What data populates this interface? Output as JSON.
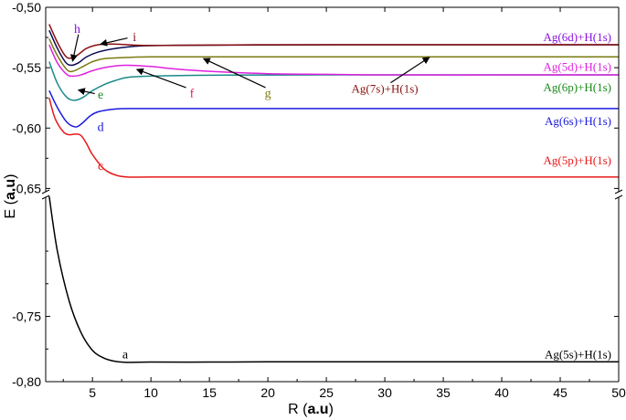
{
  "chart_data": {
    "type": "line",
    "xlabel_prefix": "R (",
    "xlabel_unit": "a.u",
    "xlabel_suffix": ")",
    "ylabel_prefix": "E (",
    "ylabel_unit": "a.u",
    "ylabel_suffix": ")",
    "x_range": [
      1,
      50
    ],
    "x_ticks": [
      5,
      10,
      15,
      20,
      25,
      30,
      35,
      40,
      45,
      50
    ],
    "y_ranges": {
      "upper": [
        -0.655,
        -0.5
      ],
      "lower": [
        -0.8,
        -0.658
      ]
    },
    "y_axis_break": true,
    "y_ticks_upper": [
      {
        "value": -0.5,
        "label": "-0,50"
      },
      {
        "value": -0.55,
        "label": "-0,55"
      },
      {
        "value": -0.6,
        "label": "-0,60"
      },
      {
        "value": -0.65,
        "label": "-0,65"
      }
    ],
    "y_ticks_lower": [
      {
        "value": -0.75,
        "label": "-0,75"
      },
      {
        "value": -0.8,
        "label": "-0,80"
      }
    ],
    "grid": false,
    "series": [
      {
        "id": "a",
        "name": "Ag(5s)+H(1s)",
        "color": "#000000",
        "segment": "lower",
        "points": [
          [
            1.3,
            -0.658
          ],
          [
            2,
            -0.7
          ],
          [
            3,
            -0.738
          ],
          [
            4,
            -0.762
          ],
          [
            5,
            -0.776
          ],
          [
            6,
            -0.782
          ],
          [
            7,
            -0.7845
          ],
          [
            8,
            -0.7852
          ],
          [
            10,
            -0.785
          ],
          [
            15,
            -0.785
          ],
          [
            20,
            -0.7848
          ],
          [
            30,
            -0.7848
          ],
          [
            40,
            -0.7848
          ],
          [
            50,
            -0.7848
          ]
        ]
      },
      {
        "id": "c",
        "name": "Ag(5p)+H(1s)",
        "color": "#e8191b",
        "segment": "upper",
        "points": [
          [
            1.3,
            -0.575
          ],
          [
            1.8,
            -0.592
          ],
          [
            2.5,
            -0.603
          ],
          [
            3,
            -0.6055
          ],
          [
            3.5,
            -0.605
          ],
          [
            4,
            -0.606
          ],
          [
            4.5,
            -0.613
          ],
          [
            5,
            -0.622
          ],
          [
            6,
            -0.634
          ],
          [
            7,
            -0.639
          ],
          [
            8,
            -0.6405
          ],
          [
            10,
            -0.6405
          ],
          [
            20,
            -0.6405
          ],
          [
            30,
            -0.6405
          ],
          [
            40,
            -0.6405
          ],
          [
            50,
            -0.6405
          ]
        ]
      },
      {
        "id": "d",
        "name": "Ag(6s)+H(1s)",
        "color": "#1a1ae0",
        "segment": "upper",
        "points": [
          [
            1.3,
            -0.569
          ],
          [
            2,
            -0.583
          ],
          [
            2.8,
            -0.595
          ],
          [
            3.5,
            -0.599
          ],
          [
            4,
            -0.597
          ],
          [
            4.8,
            -0.59
          ],
          [
            5.5,
            -0.5865
          ],
          [
            7,
            -0.5842
          ],
          [
            9,
            -0.5838
          ],
          [
            15,
            -0.5838
          ],
          [
            25,
            -0.5838
          ],
          [
            35,
            -0.5838
          ],
          [
            50,
            -0.5838
          ]
        ]
      },
      {
        "id": "e",
        "name": "Ag(6p)+H(1s)",
        "color": "#1a8a8a",
        "segment": "upper",
        "points": [
          [
            1.3,
            -0.545
          ],
          [
            2,
            -0.563
          ],
          [
            2.8,
            -0.5745
          ],
          [
            3.5,
            -0.577
          ],
          [
            4.2,
            -0.5745
          ],
          [
            5,
            -0.569
          ],
          [
            6,
            -0.564
          ],
          [
            7,
            -0.5605
          ],
          [
            8,
            -0.558
          ],
          [
            10,
            -0.557
          ],
          [
            15,
            -0.5562
          ],
          [
            25,
            -0.556
          ],
          [
            35,
            -0.556
          ],
          [
            50,
            -0.556
          ]
        ]
      },
      {
        "id": "f",
        "name": "Ag(5d)+H(1s)",
        "color": "#e020e0",
        "segment": "upper",
        "points": [
          [
            1.3,
            -0.531
          ],
          [
            2,
            -0.546
          ],
          [
            2.8,
            -0.5555
          ],
          [
            3.3,
            -0.557
          ],
          [
            4,
            -0.556
          ],
          [
            5,
            -0.5525
          ],
          [
            6,
            -0.55
          ],
          [
            7,
            -0.5485
          ],
          [
            8,
            -0.548
          ],
          [
            10,
            -0.549
          ],
          [
            12,
            -0.551
          ],
          [
            15,
            -0.553
          ],
          [
            20,
            -0.555
          ],
          [
            25,
            -0.5555
          ],
          [
            30,
            -0.556
          ],
          [
            40,
            -0.556
          ],
          [
            50,
            -0.556
          ]
        ]
      },
      {
        "id": "g",
        "name": "Ag(7s)+H(1s)",
        "color": "#7a7a10",
        "segment": "upper",
        "points": [
          [
            1.3,
            -0.526
          ],
          [
            2,
            -0.54
          ],
          [
            2.8,
            -0.5515
          ],
          [
            3.3,
            -0.553
          ],
          [
            4,
            -0.55
          ],
          [
            5,
            -0.545
          ],
          [
            6,
            -0.5425
          ],
          [
            8,
            -0.5415
          ],
          [
            10,
            -0.541
          ],
          [
            15,
            -0.541
          ],
          [
            25,
            -0.541
          ],
          [
            35,
            -0.541
          ],
          [
            50,
            -0.541
          ]
        ]
      },
      {
        "id": "h",
        "name": "Ag(6d)+H(1s)",
        "color": "#0a0a50",
        "segment": "upper",
        "points": [
          [
            1.3,
            -0.519
          ],
          [
            2,
            -0.534
          ],
          [
            2.7,
            -0.5455
          ],
          [
            3.2,
            -0.548
          ],
          [
            3.8,
            -0.546
          ],
          [
            4.5,
            -0.541
          ],
          [
            5.5,
            -0.537
          ],
          [
            7,
            -0.534
          ],
          [
            9,
            -0.532
          ],
          [
            12,
            -0.5315
          ],
          [
            20,
            -0.5312
          ],
          [
            30,
            -0.531
          ],
          [
            40,
            -0.531
          ],
          [
            50,
            -0.531
          ]
        ]
      },
      {
        "id": "i",
        "name": "",
        "color": "#8a1010",
        "segment": "upper",
        "points": [
          [
            1.3,
            -0.514
          ],
          [
            2,
            -0.529
          ],
          [
            2.7,
            -0.5405
          ],
          [
            3.2,
            -0.542
          ],
          [
            3.8,
            -0.539
          ],
          [
            4.5,
            -0.534
          ],
          [
            5.5,
            -0.531
          ],
          [
            7,
            -0.5305
          ],
          [
            9,
            -0.5315
          ],
          [
            12,
            -0.5315
          ],
          [
            20,
            -0.531
          ],
          [
            30,
            -0.531
          ],
          [
            40,
            -0.531
          ],
          [
            50,
            -0.531
          ]
        ]
      }
    ],
    "right_labels": [
      {
        "text": "Ag(6d)+H(1s)",
        "color": "#8b10e0",
        "y": -0.525
      },
      {
        "text": "Ag(5d)+H(1s)",
        "color": "#e020e0",
        "y": -0.5495
      },
      {
        "text": "Ag(6p)+H(1s)",
        "color": "#1a8a1a",
        "y": -0.5665
      },
      {
        "text": "Ag(6s)+H(1s)",
        "color": "#1a1ae0",
        "y": -0.5945
      },
      {
        "text": "Ag(5p)+H(1s)",
        "color": "#e8191b",
        "y": -0.627
      },
      {
        "text": "Ag(5s)+H(1s)",
        "color": "#000000",
        "y": -0.7795,
        "segment": "lower"
      }
    ],
    "annotations": [
      {
        "text": "h",
        "color": "#8b10e0",
        "x": 3.7,
        "y": -0.518
      },
      {
        "text": "i",
        "color": "#8a1010",
        "x": 8.6,
        "y": -0.525
      },
      {
        "text": "f",
        "color": "#e8195a",
        "x": 13.5,
        "y": -0.5715
      },
      {
        "text": "g",
        "color": "#7a7a10",
        "x": 20.0,
        "y": -0.5715
      },
      {
        "text": "Ag(7s)+H(1s)",
        "color": "#8a1010",
        "x": 30.0,
        "y": -0.5675
      },
      {
        "text": "e",
        "color": "#1a8a1a",
        "x": 5.7,
        "y": -0.5725
      },
      {
        "text": "d",
        "color": "#1a1ae0",
        "x": 5.7,
        "y": -0.5995
      },
      {
        "text": "c",
        "color": "#e8191b",
        "x": 5.7,
        "y": -0.6315
      },
      {
        "text": "a",
        "color": "#000000",
        "x": 7.8,
        "y": -0.7795,
        "segment": "lower"
      }
    ],
    "arrows": [
      {
        "color": "#000000",
        "from": [
          3.8,
          -0.5225
        ],
        "to": [
          3.3,
          -0.5445
        ]
      },
      {
        "color": "#000000",
        "from": [
          8.0,
          -0.5255
        ],
        "to": [
          5.7,
          -0.5305
        ]
      },
      {
        "color": "#000000",
        "from": [
          13.0,
          -0.5665
        ],
        "to": [
          8.8,
          -0.5515
        ]
      },
      {
        "color": "#000000",
        "from": [
          19.8,
          -0.5665
        ],
        "to": [
          14.5,
          -0.5425
        ]
      },
      {
        "color": "#000000",
        "from": [
          30.5,
          -0.5625
        ],
        "to": [
          33.8,
          -0.5415
        ]
      },
      {
        "color": "#000000",
        "from": [
          5.2,
          -0.5715
        ],
        "to": [
          3.8,
          -0.5685
        ]
      }
    ]
  }
}
